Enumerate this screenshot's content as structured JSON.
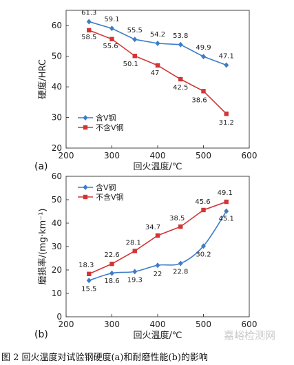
{
  "caption": "图 2   回火温度对试验钢硬度(a)和耐磨性能(b)的影响",
  "watermark": "嘉峪检测网",
  "colors": {
    "with_v": "#3d7cc9",
    "without_v": "#d33535"
  },
  "chart_data": [
    {
      "type": "line",
      "panel_label": "(a)",
      "xlabel": "回火温度/℃",
      "ylabel": "硬度/HRC",
      "xlim": [
        200,
        600
      ],
      "ylim": [
        20,
        65
      ],
      "xticks": [
        200,
        300,
        400,
        500,
        600
      ],
      "yticks": [
        20,
        30,
        40,
        50,
        60
      ],
      "legend_position": "lower-left",
      "x": [
        250,
        300,
        350,
        400,
        450,
        500,
        550
      ],
      "series": [
        {
          "name": "含V钢",
          "marker": "diamond",
          "color": "#3d7cc9",
          "values": [
            61.3,
            59.1,
            55.5,
            54.2,
            53.8,
            49.9,
            47.1
          ],
          "labels": [
            "61.3",
            "59.1",
            "55.5",
            "54.2",
            "53.8",
            "49.9",
            "47.1"
          ]
        },
        {
          "name": "不含V钢",
          "marker": "square",
          "color": "#d33535",
          "values": [
            58.5,
            55.6,
            50.1,
            47,
            42.5,
            38.6,
            31.2
          ],
          "labels": [
            "58.5",
            "55.6",
            "50.1",
            "47",
            "42.5",
            "38.6",
            "31.2"
          ]
        }
      ]
    },
    {
      "type": "line",
      "panel_label": "(b)",
      "xlabel": "回火温度/℃",
      "ylabel": "磨损率/(mg·km⁻¹)",
      "xlim": [
        200,
        600
      ],
      "ylim": [
        0,
        60
      ],
      "xticks": [
        200,
        300,
        400,
        500,
        600
      ],
      "yticks": [
        0,
        10,
        20,
        30,
        40,
        50,
        60
      ],
      "legend_position": "upper-left",
      "x": [
        250,
        300,
        350,
        400,
        450,
        500,
        550
      ],
      "series": [
        {
          "name": "含V钢",
          "marker": "diamond",
          "color": "#3d7cc9",
          "smooth": true,
          "values": [
            15.5,
            18.6,
            19.3,
            22,
            22.8,
            30.2,
            45.1
          ],
          "labels": [
            "15.5",
            "18.6",
            "19.3",
            "22",
            "22.8",
            "30.2",
            "45.1"
          ]
        },
        {
          "name": "不含V钢",
          "marker": "square",
          "color": "#d33535",
          "values": [
            18.3,
            22.6,
            28.1,
            34.7,
            38.5,
            45.6,
            49.1
          ],
          "labels": [
            "18.3",
            "22.6",
            "28.1",
            "34.7",
            "38.5",
            "45.6",
            "49.1"
          ]
        }
      ]
    }
  ]
}
